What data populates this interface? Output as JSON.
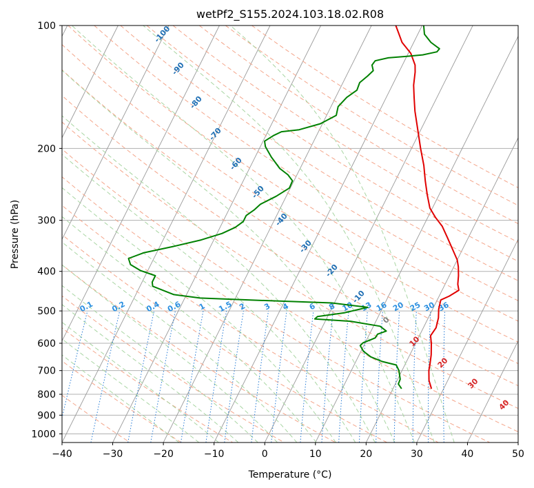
{
  "chart_data": {
    "type": "line",
    "subtype": "skew-T log-P diagram",
    "title": "wetPf2_S155.2024.103.18.02.R08",
    "xlabel": "Temperature (°C)",
    "ylabel": "Pressure (hPa)",
    "xlim": [
      -40,
      50
    ],
    "ylim": [
      1050,
      100
    ],
    "yscale": "log",
    "grid": true,
    "xticks": [
      "−40",
      "−30",
      "−20",
      "−10",
      "0",
      "10",
      "20",
      "30",
      "40",
      "50"
    ],
    "yticks": [
      "100",
      "200",
      "300",
      "400",
      "500",
      "600",
      "700",
      "800",
      "900",
      "1000"
    ],
    "ytick_values": [
      100,
      200,
      300,
      400,
      500,
      600,
      700,
      800,
      900,
      1000
    ],
    "colors": {
      "temperature": "#e00000",
      "dewpoint": "#008000",
      "isotherm": "#999999",
      "isobar": "#b0b0b0",
      "dry_adiabat": "#f4a58a",
      "moist_adiabat": "#a8d5a2",
      "mixing_ratio": "#1f77d4",
      "dry_label": "#d62728",
      "moist_label": "#1f6fb4",
      "mixing_label": "#2b8fe0",
      "zero_label": "#808080"
    },
    "series": [
      {
        "key": "temperature",
        "points": [
          {
            "t": 27.6,
            "p": 775
          },
          {
            "t": 26.3,
            "p": 740
          },
          {
            "t": 25.3,
            "p": 700
          },
          {
            "t": 24.8,
            "p": 670
          },
          {
            "t": 24.2,
            "p": 640
          },
          {
            "t": 23.1,
            "p": 600
          },
          {
            "t": 22.2,
            "p": 575
          },
          {
            "t": 22.5,
            "p": 550
          },
          {
            "t": 22.0,
            "p": 520
          },
          {
            "t": 21.2,
            "p": 495
          },
          {
            "t": 20.7,
            "p": 470
          },
          {
            "t": 22.0,
            "p": 460
          },
          {
            "t": 23.3,
            "p": 445
          },
          {
            "t": 22.5,
            "p": 430
          },
          {
            "t": 21.8,
            "p": 410
          },
          {
            "t": 20.9,
            "p": 390
          },
          {
            "t": 20.0,
            "p": 375
          },
          {
            "t": 18.2,
            "p": 355
          },
          {
            "t": 15.8,
            "p": 330
          },
          {
            "t": 13.7,
            "p": 310
          },
          {
            "t": 11.5,
            "p": 295
          },
          {
            "t": 9.5,
            "p": 280
          },
          {
            "t": 7.7,
            "p": 260
          },
          {
            "t": 5.9,
            "p": 240
          },
          {
            "t": 4.1,
            "p": 220
          },
          {
            "t": 1.8,
            "p": 200
          },
          {
            "t": -0.6,
            "p": 180
          },
          {
            "t": -3.0,
            "p": 162
          },
          {
            "t": -4.5,
            "p": 150
          },
          {
            "t": -5.8,
            "p": 140
          },
          {
            "t": -6.8,
            "p": 130
          },
          {
            "t": -7.5,
            "p": 125
          },
          {
            "t": -9.5,
            "p": 117
          },
          {
            "t": -12.3,
            "p": 110
          },
          {
            "t": -14.0,
            "p": 104
          },
          {
            "t": -15.2,
            "p": 100
          }
        ]
      },
      {
        "key": "dewpoint",
        "points": [
          {
            "t": 21.7,
            "p": 775
          },
          {
            "t": 20.6,
            "p": 755
          },
          {
            "t": 20.5,
            "p": 735
          },
          {
            "t": 19.4,
            "p": 700
          },
          {
            "t": 18.3,
            "p": 678
          },
          {
            "t": 15.2,
            "p": 665
          },
          {
            "t": 12.5,
            "p": 648
          },
          {
            "t": 10.5,
            "p": 628
          },
          {
            "t": 9.3,
            "p": 608
          },
          {
            "t": 9.6,
            "p": 598
          },
          {
            "t": 10.6,
            "p": 590
          },
          {
            "t": 11.5,
            "p": 582
          },
          {
            "t": 11.6,
            "p": 570
          },
          {
            "t": 13.0,
            "p": 560
          },
          {
            "t": 11.3,
            "p": 545
          },
          {
            "t": 5.0,
            "p": 530
          },
          {
            "t": -2.3,
            "p": 523
          },
          {
            "t": -2.0,
            "p": 516
          },
          {
            "t": 3.0,
            "p": 505
          },
          {
            "t": 7.0,
            "p": 490
          },
          {
            "t": -0.5,
            "p": 478
          },
          {
            "t": -13.0,
            "p": 472
          },
          {
            "t": -27.0,
            "p": 465
          },
          {
            "t": -32.5,
            "p": 456
          },
          {
            "t": -37.5,
            "p": 435
          },
          {
            "t": -38.0,
            "p": 425
          },
          {
            "t": -38.0,
            "p": 410
          },
          {
            "t": -41.5,
            "p": 398
          },
          {
            "t": -44.0,
            "p": 385
          },
          {
            "t": -45.0,
            "p": 372
          },
          {
            "t": -42.5,
            "p": 360
          },
          {
            "t": -37.5,
            "p": 348
          },
          {
            "t": -32.5,
            "p": 335
          },
          {
            "t": -29.0,
            "p": 323
          },
          {
            "t": -27.0,
            "p": 312
          },
          {
            "t": -26.0,
            "p": 302
          },
          {
            "t": -26.0,
            "p": 292
          },
          {
            "t": -25.0,
            "p": 283
          },
          {
            "t": -24.3,
            "p": 274
          },
          {
            "t": -22.0,
            "p": 262
          },
          {
            "t": -20.2,
            "p": 250
          },
          {
            "t": -20.3,
            "p": 240
          },
          {
            "t": -21.8,
            "p": 232
          },
          {
            "t": -24.0,
            "p": 224
          },
          {
            "t": -26.8,
            "p": 210
          },
          {
            "t": -29.0,
            "p": 198
          },
          {
            "t": -29.7,
            "p": 192
          },
          {
            "t": -28.5,
            "p": 186
          },
          {
            "t": -27.3,
            "p": 182
          },
          {
            "t": -24.0,
            "p": 180
          },
          {
            "t": -20.4,
            "p": 174
          },
          {
            "t": -18.1,
            "p": 166
          },
          {
            "t": -18.6,
            "p": 158
          },
          {
            "t": -17.8,
            "p": 150
          },
          {
            "t": -16.5,
            "p": 144
          },
          {
            "t": -16.7,
            "p": 138
          },
          {
            "t": -15.8,
            "p": 133
          },
          {
            "t": -15.2,
            "p": 129
          },
          {
            "t": -16.0,
            "p": 125
          },
          {
            "t": -15.8,
            "p": 122
          },
          {
            "t": -13.5,
            "p": 120
          },
          {
            "t": -10.0,
            "p": 119
          },
          {
            "t": -7.0,
            "p": 118
          },
          {
            "t": -4.5,
            "p": 116
          },
          {
            "t": -4.3,
            "p": 114
          },
          {
            "t": -6.6,
            "p": 110
          },
          {
            "t": -8.7,
            "p": 105
          },
          {
            "t": -9.7,
            "p": 100
          }
        ]
      }
    ],
    "dry_adiabat_labels": [
      "0",
      "10",
      "20",
      "30",
      "40"
    ],
    "moist_adiabat_labels": [
      "-100",
      "-90",
      "-80",
      "-70",
      "-60",
      "-50",
      "-40",
      "-30",
      "-20",
      "-10"
    ],
    "mixing_ratio_labels": [
      "0.1",
      "0.2",
      "0.4",
      "0.6",
      "1",
      "1.5",
      "2",
      "3",
      "4",
      "6",
      "8",
      "10",
      "13",
      "16",
      "20",
      "25",
      "30",
      "36"
    ]
  }
}
